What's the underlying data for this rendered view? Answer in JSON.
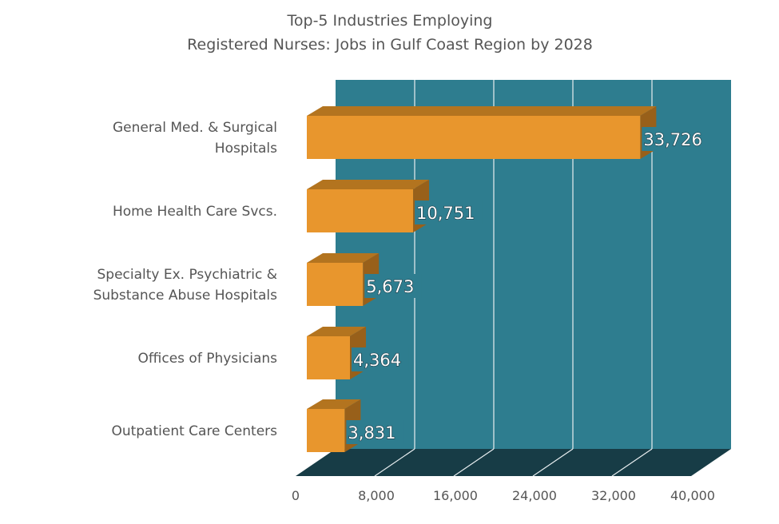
{
  "chart_data": {
    "type": "bar",
    "orientation": "horizontal",
    "style": "3d",
    "title_lines": [
      "Top-5 Industries Employing",
      "Registered Nurses: Jobs in Gulf Coast Region by 2028"
    ],
    "categories": [
      [
        "General Med. & Surgical",
        "Hospitals"
      ],
      [
        "Home Health Care Svcs."
      ],
      [
        "Specialty Ex. Psychiatric &",
        "Substance Abuse Hospitals"
      ],
      [
        "Offices of Physicians"
      ],
      [
        "Outpatient Care Centers"
      ]
    ],
    "values": [
      33726,
      10751,
      5673,
      4364,
      3831
    ],
    "data_labels": [
      "33,726",
      "10,751",
      "5,673",
      "4,364",
      "3,831"
    ],
    "xlim": [
      0,
      40000
    ],
    "ticks": [
      0,
      8000,
      16000,
      24000,
      32000,
      40000
    ],
    "tick_labels": [
      "0",
      "8,000",
      "16,000",
      "24,000",
      "32,000",
      "40,000"
    ],
    "grid": true,
    "legend": "none",
    "colors": {
      "bar": "#E8962D",
      "bar_top": "#B3741F",
      "bar_side": "#98601A",
      "wall": "#2E7D8F",
      "floor": "#173C46",
      "grid": "#E8EEF0"
    }
  }
}
